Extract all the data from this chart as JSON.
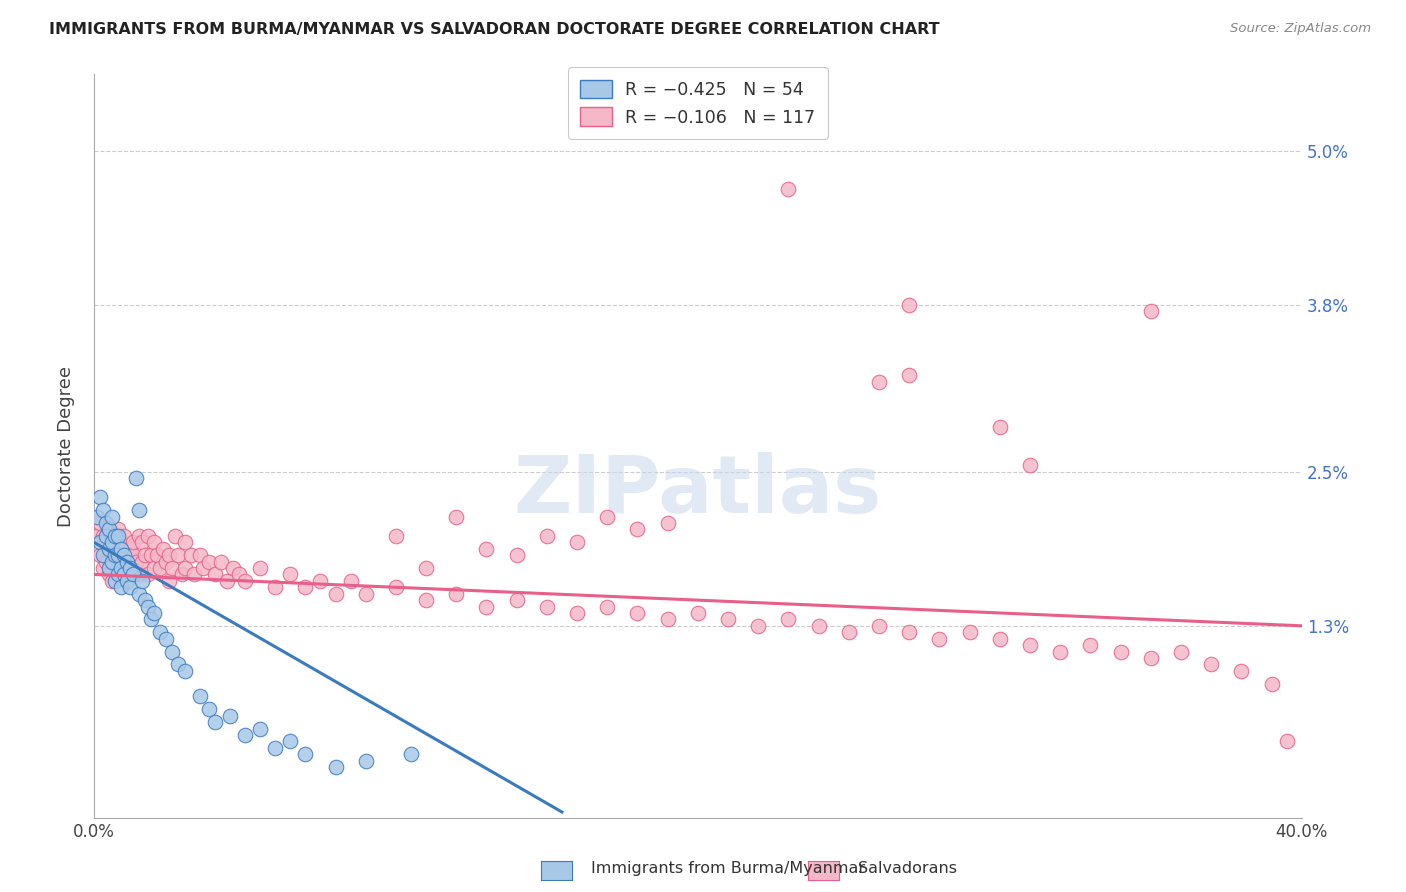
{
  "title": "IMMIGRANTS FROM BURMA/MYANMAR VS SALVADORAN DOCTORATE DEGREE CORRELATION CHART",
  "source": "Source: ZipAtlas.com",
  "ylabel": "Doctorate Degree",
  "right_yticks": [
    "5.0%",
    "3.8%",
    "2.5%",
    "1.3%"
  ],
  "right_ytick_vals": [
    0.05,
    0.038,
    0.025,
    0.013
  ],
  "blue_color": "#a8c8e8",
  "pink_color": "#f4b8c8",
  "blue_line_color": "#3a7abf",
  "pink_line_color": "#e8608a",
  "watermark": "ZIPatlas",
  "xlim": [
    0.0,
    0.4
  ],
  "ylim": [
    -0.002,
    0.056
  ],
  "blue_r": -0.425,
  "blue_n": 54,
  "pink_r": -0.106,
  "pink_n": 117,
  "legend_label_blue": "R = −0.425   N = 54",
  "legend_label_pink": "R = −0.106   N = 117",
  "bottom_label_blue": "Immigrants from Burma/Myanmar",
  "bottom_label_pink": "Salvadorans",
  "blue_line_x": [
    0.0,
    0.155
  ],
  "blue_line_y": [
    0.0195,
    -0.0015
  ],
  "pink_line_x": [
    0.0,
    0.4
  ],
  "pink_line_y": [
    0.017,
    0.013
  ],
  "blue_points": [
    [
      0.001,
      0.0215
    ],
    [
      0.002,
      0.023
    ],
    [
      0.002,
      0.0195
    ],
    [
      0.003,
      0.022
    ],
    [
      0.003,
      0.0185
    ],
    [
      0.004,
      0.021
    ],
    [
      0.004,
      0.02
    ],
    [
      0.005,
      0.0205
    ],
    [
      0.005,
      0.019
    ],
    [
      0.005,
      0.0175
    ],
    [
      0.006,
      0.0215
    ],
    [
      0.006,
      0.0195
    ],
    [
      0.006,
      0.018
    ],
    [
      0.007,
      0.02
    ],
    [
      0.007,
      0.0185
    ],
    [
      0.007,
      0.0165
    ],
    [
      0.008,
      0.02
    ],
    [
      0.008,
      0.0185
    ],
    [
      0.008,
      0.017
    ],
    [
      0.009,
      0.019
    ],
    [
      0.009,
      0.0175
    ],
    [
      0.009,
      0.016
    ],
    [
      0.01,
      0.0185
    ],
    [
      0.01,
      0.017
    ],
    [
      0.011,
      0.018
    ],
    [
      0.011,
      0.0165
    ],
    [
      0.012,
      0.0175
    ],
    [
      0.012,
      0.016
    ],
    [
      0.013,
      0.017
    ],
    [
      0.014,
      0.0245
    ],
    [
      0.015,
      0.022
    ],
    [
      0.015,
      0.0155
    ],
    [
      0.016,
      0.0165
    ],
    [
      0.017,
      0.015
    ],
    [
      0.018,
      0.0145
    ],
    [
      0.019,
      0.0135
    ],
    [
      0.02,
      0.014
    ],
    [
      0.022,
      0.0125
    ],
    [
      0.024,
      0.012
    ],
    [
      0.026,
      0.011
    ],
    [
      0.028,
      0.01
    ],
    [
      0.03,
      0.0095
    ],
    [
      0.035,
      0.0075
    ],
    [
      0.038,
      0.0065
    ],
    [
      0.04,
      0.0055
    ],
    [
      0.045,
      0.006
    ],
    [
      0.05,
      0.0045
    ],
    [
      0.055,
      0.005
    ],
    [
      0.06,
      0.0035
    ],
    [
      0.065,
      0.004
    ],
    [
      0.07,
      0.003
    ],
    [
      0.08,
      0.002
    ],
    [
      0.09,
      0.0025
    ],
    [
      0.105,
      0.003
    ]
  ],
  "pink_points": [
    [
      0.001,
      0.02
    ],
    [
      0.002,
      0.021
    ],
    [
      0.002,
      0.0185
    ],
    [
      0.003,
      0.02
    ],
    [
      0.003,
      0.0175
    ],
    [
      0.004,
      0.0195
    ],
    [
      0.004,
      0.018
    ],
    [
      0.005,
      0.0205
    ],
    [
      0.005,
      0.019
    ],
    [
      0.005,
      0.017
    ],
    [
      0.006,
      0.02
    ],
    [
      0.006,
      0.0185
    ],
    [
      0.006,
      0.0165
    ],
    [
      0.007,
      0.0195
    ],
    [
      0.007,
      0.018
    ],
    [
      0.008,
      0.0205
    ],
    [
      0.008,
      0.0185
    ],
    [
      0.009,
      0.0195
    ],
    [
      0.009,
      0.0175
    ],
    [
      0.01,
      0.019
    ],
    [
      0.01,
      0.02
    ],
    [
      0.011,
      0.0185
    ],
    [
      0.011,
      0.017
    ],
    [
      0.012,
      0.019
    ],
    [
      0.012,
      0.0175
    ],
    [
      0.013,
      0.0185
    ],
    [
      0.013,
      0.0195
    ],
    [
      0.014,
      0.018
    ],
    [
      0.015,
      0.02
    ],
    [
      0.015,
      0.017
    ],
    [
      0.016,
      0.018
    ],
    [
      0.016,
      0.0195
    ],
    [
      0.017,
      0.0185
    ],
    [
      0.018,
      0.02
    ],
    [
      0.018,
      0.017
    ],
    [
      0.019,
      0.0185
    ],
    [
      0.02,
      0.0175
    ],
    [
      0.02,
      0.0195
    ],
    [
      0.021,
      0.0185
    ],
    [
      0.022,
      0.0175
    ],
    [
      0.023,
      0.019
    ],
    [
      0.024,
      0.018
    ],
    [
      0.025,
      0.0165
    ],
    [
      0.025,
      0.0185
    ],
    [
      0.026,
      0.0175
    ],
    [
      0.027,
      0.02
    ],
    [
      0.028,
      0.0185
    ],
    [
      0.029,
      0.017
    ],
    [
      0.03,
      0.0195
    ],
    [
      0.03,
      0.0175
    ],
    [
      0.032,
      0.0185
    ],
    [
      0.033,
      0.017
    ],
    [
      0.035,
      0.0185
    ],
    [
      0.036,
      0.0175
    ],
    [
      0.038,
      0.018
    ],
    [
      0.04,
      0.017
    ],
    [
      0.042,
      0.018
    ],
    [
      0.044,
      0.0165
    ],
    [
      0.046,
      0.0175
    ],
    [
      0.048,
      0.017
    ],
    [
      0.05,
      0.0165
    ],
    [
      0.055,
      0.0175
    ],
    [
      0.06,
      0.016
    ],
    [
      0.065,
      0.017
    ],
    [
      0.07,
      0.016
    ],
    [
      0.075,
      0.0165
    ],
    [
      0.08,
      0.0155
    ],
    [
      0.085,
      0.0165
    ],
    [
      0.09,
      0.0155
    ],
    [
      0.1,
      0.016
    ],
    [
      0.11,
      0.015
    ],
    [
      0.12,
      0.0155
    ],
    [
      0.13,
      0.0145
    ],
    [
      0.14,
      0.015
    ],
    [
      0.15,
      0.0145
    ],
    [
      0.16,
      0.014
    ],
    [
      0.17,
      0.0145
    ],
    [
      0.18,
      0.014
    ],
    [
      0.19,
      0.0135
    ],
    [
      0.2,
      0.014
    ],
    [
      0.21,
      0.0135
    ],
    [
      0.22,
      0.013
    ],
    [
      0.23,
      0.0135
    ],
    [
      0.24,
      0.013
    ],
    [
      0.25,
      0.0125
    ],
    [
      0.26,
      0.013
    ],
    [
      0.27,
      0.0125
    ],
    [
      0.28,
      0.012
    ],
    [
      0.29,
      0.0125
    ],
    [
      0.3,
      0.012
    ],
    [
      0.31,
      0.0115
    ],
    [
      0.32,
      0.011
    ],
    [
      0.33,
      0.0115
    ],
    [
      0.34,
      0.011
    ],
    [
      0.35,
      0.0105
    ],
    [
      0.36,
      0.011
    ],
    [
      0.37,
      0.01
    ],
    [
      0.38,
      0.0095
    ],
    [
      0.39,
      0.0085
    ],
    [
      0.395,
      0.004
    ],
    [
      0.23,
      0.047
    ],
    [
      0.27,
      0.038
    ],
    [
      0.35,
      0.0375
    ],
    [
      0.26,
      0.032
    ],
    [
      0.27,
      0.0325
    ],
    [
      0.3,
      0.0285
    ],
    [
      0.31,
      0.0255
    ],
    [
      0.18,
      0.0205
    ],
    [
      0.19,
      0.021
    ],
    [
      0.16,
      0.0195
    ],
    [
      0.17,
      0.0215
    ],
    [
      0.14,
      0.0185
    ],
    [
      0.15,
      0.02
    ],
    [
      0.12,
      0.0215
    ],
    [
      0.13,
      0.019
    ],
    [
      0.1,
      0.02
    ],
    [
      0.11,
      0.0175
    ]
  ]
}
